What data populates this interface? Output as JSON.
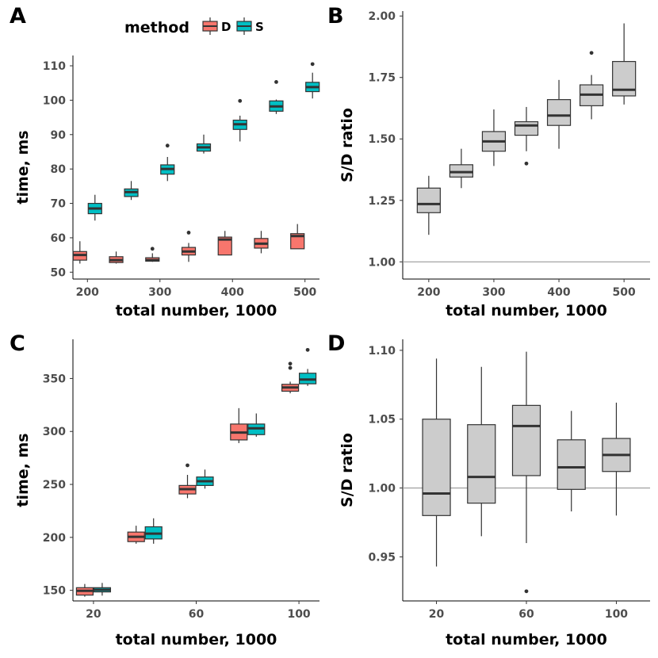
{
  "legend": {
    "title": "method",
    "items": [
      {
        "label": "D",
        "color": "#F8766D"
      },
      {
        "label": "S",
        "color": "#00BFC4"
      }
    ]
  },
  "colors": {
    "ratio_box": "#cccccc",
    "reference_line": "#999999",
    "box_stroke": "#333333"
  },
  "chart_data": [
    {
      "panel": "A",
      "type": "boxplot",
      "xlabel": "total number, 1000",
      "ylabel": "time, ms",
      "xlim": [
        180,
        520
      ],
      "ylim": [
        48,
        113
      ],
      "xticks": [
        200,
        300,
        400,
        500
      ],
      "yticks": [
        50,
        60,
        70,
        80,
        90,
        100,
        110
      ],
      "grid": false,
      "legend_position": "top",
      "series": [
        {
          "name": "D",
          "color": "#F8766D",
          "boxes": [
            {
              "x": 200,
              "min": 52.5,
              "q1": 53.5,
              "median": 55,
              "q3": 56,
              "max": 59,
              "outliers": []
            },
            {
              "x": 250,
              "min": 52.5,
              "q1": 52.8,
              "median": 53.5,
              "q3": 54.5,
              "max": 56,
              "outliers": []
            },
            {
              "x": 300,
              "min": 53,
              "q1": 53.2,
              "median": 53.5,
              "q3": 54.2,
              "max": 55.5,
              "outliers": [
                56.8
              ]
            },
            {
              "x": 350,
              "min": 53,
              "q1": 55,
              "median": 56,
              "q3": 57.2,
              "max": 58.5,
              "outliers": [
                61.5
              ]
            },
            {
              "x": 400,
              "min": 55,
              "q1": 55,
              "median": 59.5,
              "q3": 60.2,
              "max": 62,
              "outliers": []
            },
            {
              "x": 450,
              "min": 55.5,
              "q1": 57,
              "median": 58.3,
              "q3": 59.8,
              "max": 62,
              "outliers": []
            },
            {
              "x": 500,
              "min": 56.8,
              "q1": 56.8,
              "median": 60.5,
              "q3": 61.2,
              "max": 64,
              "outliers": []
            }
          ]
        },
        {
          "name": "S",
          "color": "#00BFC4",
          "boxes": [
            {
              "x": 200,
              "min": 65,
              "q1": 67,
              "median": 68.5,
              "q3": 70,
              "max": 72.5,
              "outliers": []
            },
            {
              "x": 250,
              "min": 71,
              "q1": 72,
              "median": 73.3,
              "q3": 74.2,
              "max": 76.5,
              "outliers": []
            },
            {
              "x": 300,
              "min": 76.5,
              "q1": 78.5,
              "median": 80,
              "q3": 81.2,
              "max": 83.5,
              "outliers": [
                86.8
              ]
            },
            {
              "x": 350,
              "min": 84.5,
              "q1": 85.2,
              "median": 86.3,
              "q3": 87.3,
              "max": 90,
              "outliers": []
            },
            {
              "x": 400,
              "min": 88,
              "q1": 91.5,
              "median": 93,
              "q3": 94.2,
              "max": 95.5,
              "outliers": [
                99.8
              ]
            },
            {
              "x": 450,
              "min": 96,
              "q1": 96.8,
              "median": 98.2,
              "q3": 99.8,
              "max": 100.2,
              "outliers": [
                105.3
              ]
            },
            {
              "x": 500,
              "min": 100.5,
              "q1": 102.5,
              "median": 103.8,
              "q3": 105.2,
              "max": 108,
              "outliers": [
                110.5
              ]
            }
          ]
        }
      ]
    },
    {
      "panel": "B",
      "type": "boxplot",
      "xlabel": "total number, 1000",
      "ylabel": "S/D ratio",
      "xlim": [
        160,
        540
      ],
      "ylim": [
        0.93,
        2.02
      ],
      "xticks": [
        200,
        300,
        400,
        500
      ],
      "yticks": [
        1.0,
        1.25,
        1.5,
        1.75,
        2.0
      ],
      "ytick_labels": [
        "1.00",
        "1.25",
        "1.50",
        "1.75",
        "2.00"
      ],
      "reference_y": 1.0,
      "grid": false,
      "boxes": [
        {
          "x": 200,
          "min": 1.11,
          "q1": 1.2,
          "median": 1.235,
          "q3": 1.3,
          "max": 1.35,
          "outliers": []
        },
        {
          "x": 250,
          "min": 1.3,
          "q1": 1.345,
          "median": 1.365,
          "q3": 1.395,
          "max": 1.46,
          "outliers": []
        },
        {
          "x": 300,
          "min": 1.39,
          "q1": 1.45,
          "median": 1.49,
          "q3": 1.53,
          "max": 1.62,
          "outliers": []
        },
        {
          "x": 350,
          "min": 1.45,
          "q1": 1.515,
          "median": 1.555,
          "q3": 1.57,
          "max": 1.63,
          "outliers": [
            1.4
          ]
        },
        {
          "x": 400,
          "min": 1.46,
          "q1": 1.555,
          "median": 1.595,
          "q3": 1.66,
          "max": 1.74,
          "outliers": []
        },
        {
          "x": 450,
          "min": 1.58,
          "q1": 1.635,
          "median": 1.68,
          "q3": 1.72,
          "max": 1.76,
          "outliers": [
            1.85
          ]
        },
        {
          "x": 500,
          "min": 1.64,
          "q1": 1.675,
          "median": 1.7,
          "q3": 1.815,
          "max": 1.97,
          "outliers": []
        }
      ]
    },
    {
      "panel": "C",
      "type": "boxplot",
      "xlabel": "total number, 1000",
      "ylabel": "time, ms",
      "xlim": [
        12,
        108
      ],
      "ylim": [
        140,
        387
      ],
      "xticks": [
        20,
        60,
        100
      ],
      "yticks": [
        150,
        200,
        250,
        300,
        350
      ],
      "grid": false,
      "series": [
        {
          "name": "D",
          "color": "#F8766D",
          "boxes": [
            {
              "x": 20,
              "min": 144,
              "q1": 145.5,
              "median": 149.5,
              "q3": 152.5,
              "max": 156,
              "outliers": []
            },
            {
              "x": 40,
              "min": 194,
              "q1": 196,
              "median": 200.5,
              "q3": 205,
              "max": 211,
              "outliers": []
            },
            {
              "x": 60,
              "min": 237,
              "q1": 241,
              "median": 245.5,
              "q3": 249,
              "max": 259,
              "outliers": [
                268
              ]
            },
            {
              "x": 80,
              "min": 289,
              "q1": 292,
              "median": 299,
              "q3": 307,
              "max": 322,
              "outliers": []
            },
            {
              "x": 100,
              "min": 336,
              "q1": 338,
              "median": 341.5,
              "q3": 344.5,
              "max": 347,
              "outliers": [
                360,
                364
              ]
            }
          ]
        },
        {
          "name": "S",
          "color": "#00BFC4",
          "boxes": [
            {
              "x": 20,
              "min": 145,
              "q1": 148.5,
              "median": 150.5,
              "q3": 152.5,
              "max": 157,
              "outliers": []
            },
            {
              "x": 40,
              "min": 194,
              "q1": 198.5,
              "median": 203.5,
              "q3": 210,
              "max": 218,
              "outliers": []
            },
            {
              "x": 60,
              "min": 246,
              "q1": 249,
              "median": 253,
              "q3": 257,
              "max": 264,
              "outliers": []
            },
            {
              "x": 80,
              "min": 295,
              "q1": 297,
              "median": 303,
              "q3": 307,
              "max": 317,
              "outliers": []
            },
            {
              "x": 100,
              "min": 343,
              "q1": 345,
              "median": 349,
              "q3": 355,
              "max": 359,
              "outliers": [
                377
              ]
            }
          ]
        }
      ]
    },
    {
      "panel": "D",
      "type": "boxplot",
      "xlabel": "total number, 1000",
      "ylabel": "S/D ratio",
      "xlim": [
        5,
        115
      ],
      "ylim": [
        0.918,
        1.108
      ],
      "xticks": [
        20,
        60,
        100
      ],
      "yticks": [
        0.95,
        1.0,
        1.05,
        1.1
      ],
      "ytick_labels": [
        "0.95",
        "1.00",
        "1.05",
        "1.10"
      ],
      "reference_y": 1.0,
      "grid": false,
      "boxes": [
        {
          "x": 20,
          "min": 0.943,
          "q1": 0.98,
          "median": 0.996,
          "q3": 1.05,
          "max": 1.094,
          "outliers": []
        },
        {
          "x": 40,
          "min": 0.965,
          "q1": 0.989,
          "median": 1.008,
          "q3": 1.046,
          "max": 1.088,
          "outliers": []
        },
        {
          "x": 60,
          "min": 0.96,
          "q1": 1.009,
          "median": 1.045,
          "q3": 1.06,
          "max": 1.099,
          "outliers": [
            0.925
          ]
        },
        {
          "x": 80,
          "min": 0.983,
          "q1": 0.999,
          "median": 1.015,
          "q3": 1.035,
          "max": 1.056,
          "outliers": []
        },
        {
          "x": 100,
          "min": 0.98,
          "q1": 1.012,
          "median": 1.024,
          "q3": 1.036,
          "max": 1.062,
          "outliers": []
        }
      ]
    }
  ]
}
